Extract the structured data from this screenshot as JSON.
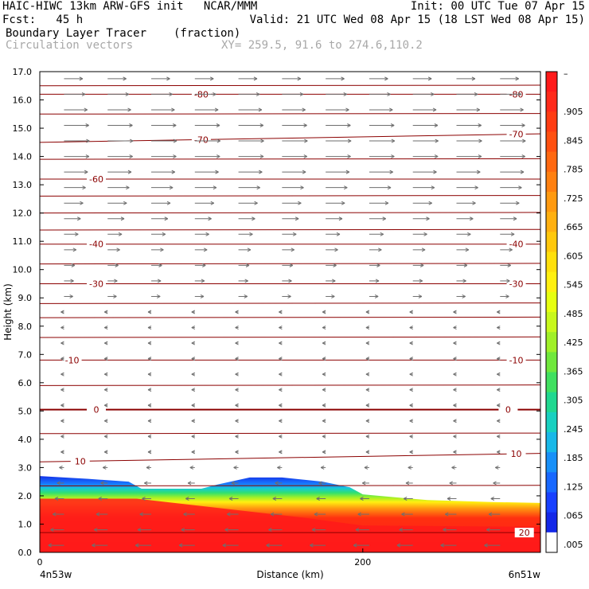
{
  "header": {
    "line1_left": "HAIC-HIWC 13km ARW-GFS init   NCAR/MMM",
    "line1_right": "Init: 00 UTC Tue 07 Apr 15",
    "line2_left": "Fcst:   45 h",
    "line2_right": "Valid: 21 UTC Wed 08 Apr 15 (18 LST Wed 08 Apr 15)",
    "field_name": "Boundary Layer Tracer",
    "field_units": "(fraction)",
    "vector_label": "Circulation vectors",
    "xy_label": "XY= 259.5, 91.6 to 274.6,110.2"
  },
  "chart_data": {
    "type": "heatmap",
    "description_kind": "vertical cross-section",
    "xlabel": "Distance (km)",
    "ylabel": "Height (km)",
    "xlim": [
      0,
      310
    ],
    "ylim": [
      0,
      17
    ],
    "x_ticks": [
      0,
      200
    ],
    "x_tick_labels": [
      "0",
      "200"
    ],
    "x_end_labels": {
      "left": "4n53w",
      "right": "6n51w"
    },
    "y_ticks": [
      0,
      1,
      2,
      3,
      4,
      5,
      6,
      7,
      8,
      9,
      10,
      11,
      12,
      13,
      14,
      15,
      16,
      17
    ],
    "y_tick_labels": [
      "0.0",
      "1.0",
      "2.0",
      "3.0",
      "4.0",
      "5.0",
      "6.0",
      "7.0",
      "8.0",
      "9.0",
      "10.0",
      "11.0",
      "12.0",
      "13.0",
      "14.0",
      "15.0",
      "16.0",
      "17.0"
    ],
    "colorbar": {
      "label_top": "–",
      "labels": [
        ".905",
        ".845",
        ".785",
        ".725",
        ".665",
        ".605",
        ".545",
        ".485",
        ".425",
        ".365",
        ".305",
        ".245",
        ".185",
        ".125",
        ".065",
        ".005"
      ],
      "colors": [
        "#ff1a1a",
        "#ff2a1a",
        "#ff3c12",
        "#ff5010",
        "#ff6810",
        "#ff8010",
        "#ff9a10",
        "#ffb010",
        "#ffc80c",
        "#ffe00c",
        "#fff010",
        "#e6ff10",
        "#c8f81c",
        "#a0f028",
        "#70e83c",
        "#40e060",
        "#20d890",
        "#18d0c0",
        "#18b8e8",
        "#1890f8",
        "#1868ff",
        "#1840ff",
        "#1428e8",
        "#ffffff"
      ]
    },
    "tracer_top_height_km": [
      [
        0,
        2.7
      ],
      [
        30,
        2.6
      ],
      [
        55,
        2.5
      ],
      [
        63,
        2.25
      ],
      [
        100,
        2.25
      ],
      [
        110,
        2.4
      ],
      [
        130,
        2.65
      ],
      [
        150,
        2.65
      ],
      [
        175,
        2.5
      ],
      [
        192,
        2.3
      ],
      [
        200,
        2.05
      ],
      [
        240,
        1.85
      ],
      [
        280,
        1.78
      ],
      [
        310,
        1.75
      ]
    ],
    "temperature_contours": [
      {
        "label": "-80",
        "levels": [
          [
            0,
            16.2
          ],
          [
            310,
            16.2
          ]
        ],
        "label_x": [
          100,
          295
        ]
      },
      {
        "label": "-70",
        "levels": [
          [
            0,
            14.5
          ],
          [
            310,
            14.8
          ]
        ],
        "label_x": [
          100,
          295
        ]
      },
      {
        "label": "-60",
        "levels": [
          [
            0,
            13.2
          ],
          [
            310,
            13.2
          ]
        ],
        "label_x": [
          35
        ]
      },
      {
        "label": "-40",
        "levels": [
          [
            0,
            10.9
          ],
          [
            310,
            10.9
          ]
        ],
        "label_x": [
          35,
          295
        ]
      },
      {
        "label": "-30",
        "levels": [
          [
            0,
            9.5
          ],
          [
            310,
            9.5
          ]
        ],
        "label_x": [
          35,
          295
        ]
      },
      {
        "label": "-10",
        "levels": [
          [
            0,
            6.8
          ],
          [
            310,
            6.8
          ]
        ],
        "label_x": [
          20,
          295
        ]
      },
      {
        "label": "0",
        "levels": [
          [
            0,
            5.05
          ],
          [
            310,
            5.05
          ]
        ],
        "label_x": [
          35,
          290
        ]
      },
      {
        "label": "10",
        "levels": [
          [
            0,
            3.2
          ],
          [
            310,
            3.5
          ]
        ],
        "label_x": [
          25,
          295
        ]
      },
      {
        "label": "20",
        "levels": [
          [
            0,
            0.7
          ],
          [
            310,
            0.7
          ]
        ],
        "label_x": [
          300
        ]
      }
    ],
    "unlabeled_contour_heights_km": [
      16.5,
      15.5,
      13.9,
      12.6,
      12.0,
      11.4,
      10.2,
      8.8,
      8.3,
      7.6,
      5.9,
      4.2,
      2.35
    ],
    "vectors": {
      "upper_direction": "east",
      "lower_direction": "west",
      "transition_height_km": 9.0,
      "upper_speed_peak_height_km": 14.5,
      "near_surface_strongest": true
    }
  }
}
